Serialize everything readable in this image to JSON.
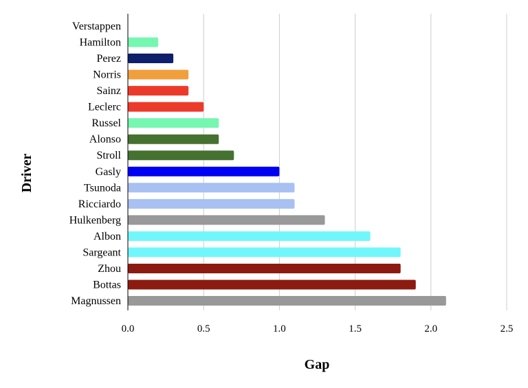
{
  "chart_data": {
    "type": "bar",
    "orientation": "horizontal",
    "xlabel": "Gap",
    "ylabel": "Driver",
    "xlim": [
      0,
      2.5
    ],
    "xticks": [
      "0.0",
      "0.5",
      "1.0",
      "1.5",
      "2.0",
      "2.5"
    ],
    "grid": "vertical",
    "categories": [
      "Verstappen",
      "Hamilton",
      "Perez",
      "Norris",
      "Sainz",
      "Leclerc",
      "Russel",
      "Alonso",
      "Stroll",
      "Gasly",
      "Tsunoda",
      "Ricciardo",
      "Hulkenberg",
      "Albon",
      "Sargeant",
      "Zhou",
      "Bottas",
      "Magnussen"
    ],
    "values": [
      0,
      0.2,
      0.3,
      0.4,
      0.4,
      0.5,
      0.6,
      0.6,
      0.7,
      1.0,
      1.1,
      1.1,
      1.3,
      1.6,
      1.8,
      1.8,
      1.9,
      2.1
    ],
    "colors": [
      "#888888",
      "#76f7b1",
      "#0f1f6b",
      "#f19f3d",
      "#ec3a2a",
      "#ec3a2a",
      "#76f7b1",
      "#467231",
      "#467231",
      "#0000f5",
      "#a8c1f2",
      "#a8c1f2",
      "#999999",
      "#71f7fb",
      "#71f7fb",
      "#8b1b10",
      "#8b1b10",
      "#999999"
    ]
  }
}
